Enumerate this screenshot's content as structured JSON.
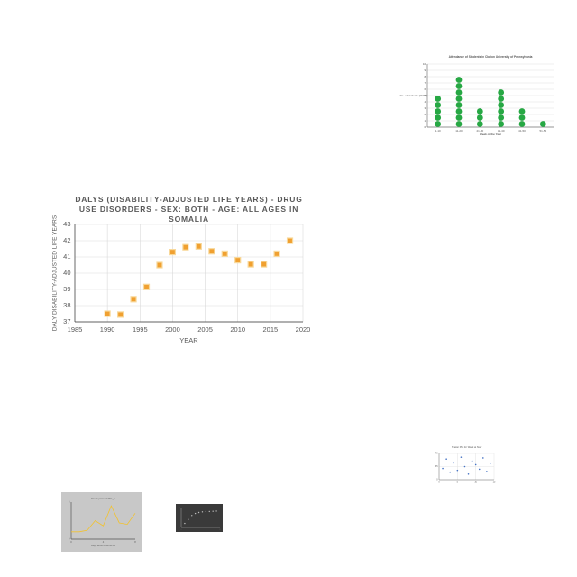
{
  "chart_data": [
    {
      "type": "scatter",
      "title": "DALYs (Disability-Adjusted Life Years) - Drug use disorders - Sex: Both - Age: All Ages in Somalia",
      "x_label": "YEAR",
      "y_label": "DALY Disability-Adjusted Life Years",
      "x": [
        1990,
        1992,
        1994,
        1996,
        1998,
        2000,
        2002,
        2004,
        2006,
        2008,
        2010,
        2012,
        2014,
        2016,
        2018
      ],
      "values": [
        37.5,
        37.45,
        38.4,
        39.15,
        40.5,
        41.3,
        41.6,
        41.65,
        41.35,
        41.2,
        40.8,
        40.55,
        40.55,
        41.2,
        42.0
      ],
      "color": "#f0a030",
      "xlim": [
        1985,
        2020
      ],
      "xticks": [
        1985,
        1990,
        1995,
        2000,
        2005,
        2010,
        2015,
        2020
      ],
      "ylim": [
        37,
        43
      ],
      "yticks": [
        37,
        38,
        39,
        40,
        41,
        42,
        43
      ],
      "grid": true
    },
    {
      "type": "dot",
      "title": "Attendance of Students in Clarion University of Pennsylvania",
      "x_label": "Week of the Year",
      "y_label": "No. of students (*1000)",
      "categories": [
        "1-10",
        "11-20",
        "21-30",
        "31-40",
        "41-50",
        "51-52"
      ],
      "values": [
        5,
        8,
        3,
        6,
        3,
        1
      ],
      "color": "#27a844",
      "ylim": [
        0,
        10
      ],
      "yticks": [
        0,
        1,
        2,
        3,
        4,
        5,
        6,
        7,
        8,
        9,
        10
      ],
      "grid": true
    },
    {
      "type": "scatter",
      "title": "Scatter Plot for Week at Staff",
      "x": [
        1,
        2,
        3,
        4,
        5,
        6,
        7,
        8,
        9,
        10,
        11,
        12,
        13,
        14
      ],
      "values": [
        30,
        55,
        20,
        45,
        25,
        60,
        35,
        15,
        50,
        40,
        28,
        58,
        22,
        44
      ],
      "color": "#4472c4",
      "xlim": [
        0,
        15
      ],
      "xticks": [
        0,
        5,
        10,
        15
      ],
      "ylim": [
        0,
        70
      ],
      "yticks": [
        0,
        35,
        70
      ],
      "grid": true
    },
    {
      "type": "line",
      "title": "Stock price of PG_1",
      "x_label": "Days since 2018-10-01",
      "x": [
        0,
        1,
        2,
        3,
        4,
        5,
        6,
        7,
        8
      ],
      "values": [
        1,
        1,
        1.2,
        2.5,
        1.8,
        4.5,
        2.2,
        2.0,
        3.5
      ],
      "color": "#f2c22e",
      "xlim": [
        0,
        8
      ],
      "xticks": [
        0,
        4,
        8
      ],
      "ylim": [
        0,
        5
      ],
      "yticks": [
        0,
        5
      ],
      "grid": false
    },
    {
      "type": "scatter",
      "x": [
        1,
        2,
        3,
        4,
        5,
        6,
        7,
        8,
        9,
        10
      ],
      "values": [
        2,
        4,
        6,
        7,
        7.5,
        7.8,
        8,
        8,
        8.1,
        8.2
      ],
      "color": "#bbbbbb",
      "xlim": [
        0,
        11
      ],
      "xticks": [
        0,
        11
      ],
      "ylim": [
        0,
        10
      ],
      "yticks": [
        0,
        10
      ],
      "grid": false
    }
  ]
}
